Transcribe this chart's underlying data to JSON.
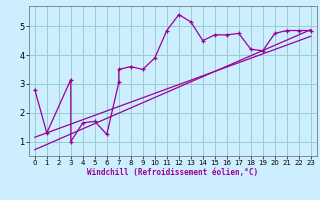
{
  "bg_color": "#cceeff",
  "grid_color": "#99cccc",
  "line_color": "#990099",
  "xlim": [
    -0.5,
    23.5
  ],
  "ylim": [
    0.5,
    5.7
  ],
  "xticks": [
    0,
    1,
    2,
    3,
    4,
    5,
    6,
    7,
    8,
    9,
    10,
    11,
    12,
    13,
    14,
    15,
    16,
    17,
    18,
    19,
    20,
    21,
    22,
    23
  ],
  "yticks": [
    1,
    2,
    3,
    4,
    5
  ],
  "xlabel": "Windchill (Refroidissement éolien,°C)",
  "series1_x": [
    0,
    1,
    3,
    3,
    4,
    5,
    6,
    7,
    7,
    8,
    9,
    10,
    11,
    12,
    13,
    14,
    15,
    16,
    17,
    18,
    19,
    20,
    21,
    22,
    23
  ],
  "series1_y": [
    2.8,
    1.3,
    3.15,
    1.0,
    1.65,
    1.7,
    1.25,
    3.05,
    3.5,
    3.6,
    3.5,
    3.9,
    4.85,
    5.4,
    5.15,
    4.5,
    4.7,
    4.7,
    4.75,
    4.2,
    4.15,
    4.75,
    4.85,
    4.85,
    4.85
  ],
  "trend1_x": [
    0,
    23
  ],
  "trend1_y": [
    1.15,
    4.65
  ],
  "trend2_x": [
    0,
    23
  ],
  "trend2_y": [
    0.72,
    4.88
  ]
}
